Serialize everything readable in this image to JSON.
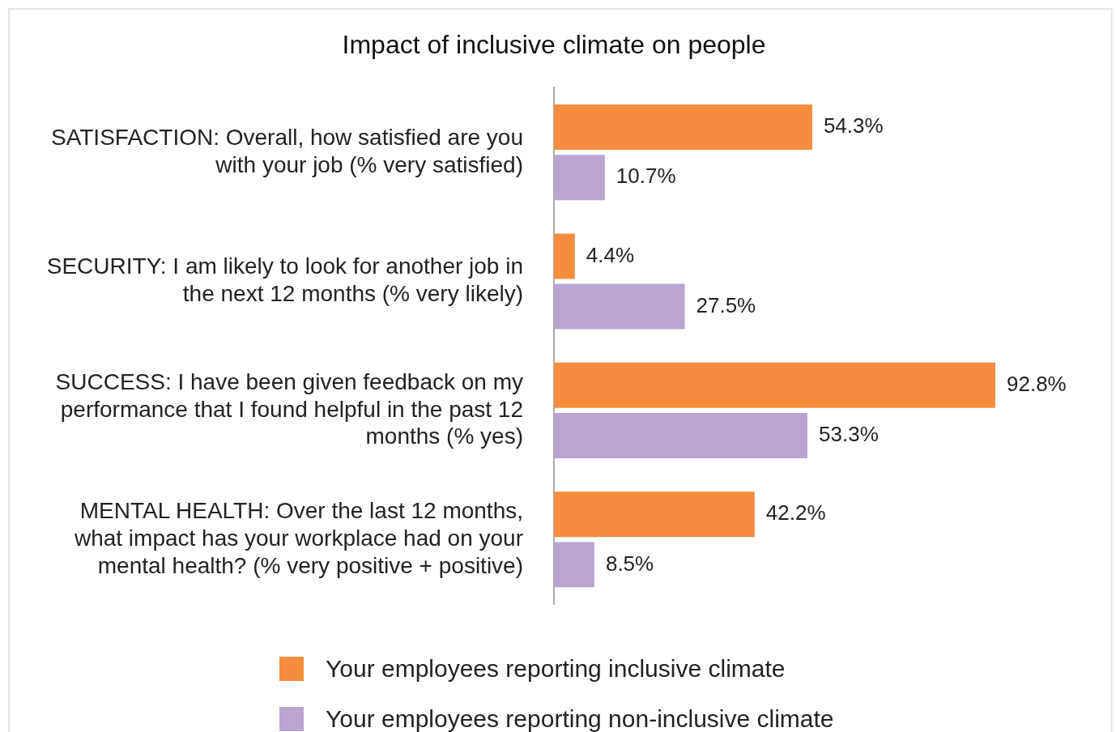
{
  "chart_data": {
    "type": "bar",
    "orientation": "horizontal",
    "title": "Impact of inclusive climate on people",
    "categories": [
      "SATISFACTION: Overall, how satisfied are you with your job (% very satisfied)",
      "SECURITY: I am likely to look for another job in the next 12 months (% very likely)",
      "SUCCESS: I have been given feedback on my performance that I found helpful in the past 12 months (% yes)",
      "MENTAL HEALTH: Over the last 12 months, what impact has your workplace had on your mental health? (% very positive + positive)"
    ],
    "series": [
      {
        "name": "Your employees reporting inclusive climate",
        "color": "#f58d3f",
        "values": [
          54.3,
          4.4,
          92.8,
          42.2
        ],
        "value_labels": [
          "54.3%",
          "4.4%",
          "92.8%",
          "42.2%"
        ]
      },
      {
        "name": "Your employees reporting non-inclusive climate",
        "color": "#b8a5d1",
        "values": [
          10.7,
          27.5,
          53.3,
          8.5
        ],
        "value_labels": [
          "10.7%",
          "27.5%",
          "53.3%",
          "8.5%"
        ]
      }
    ],
    "legend": "bottom",
    "grid": false
  }
}
